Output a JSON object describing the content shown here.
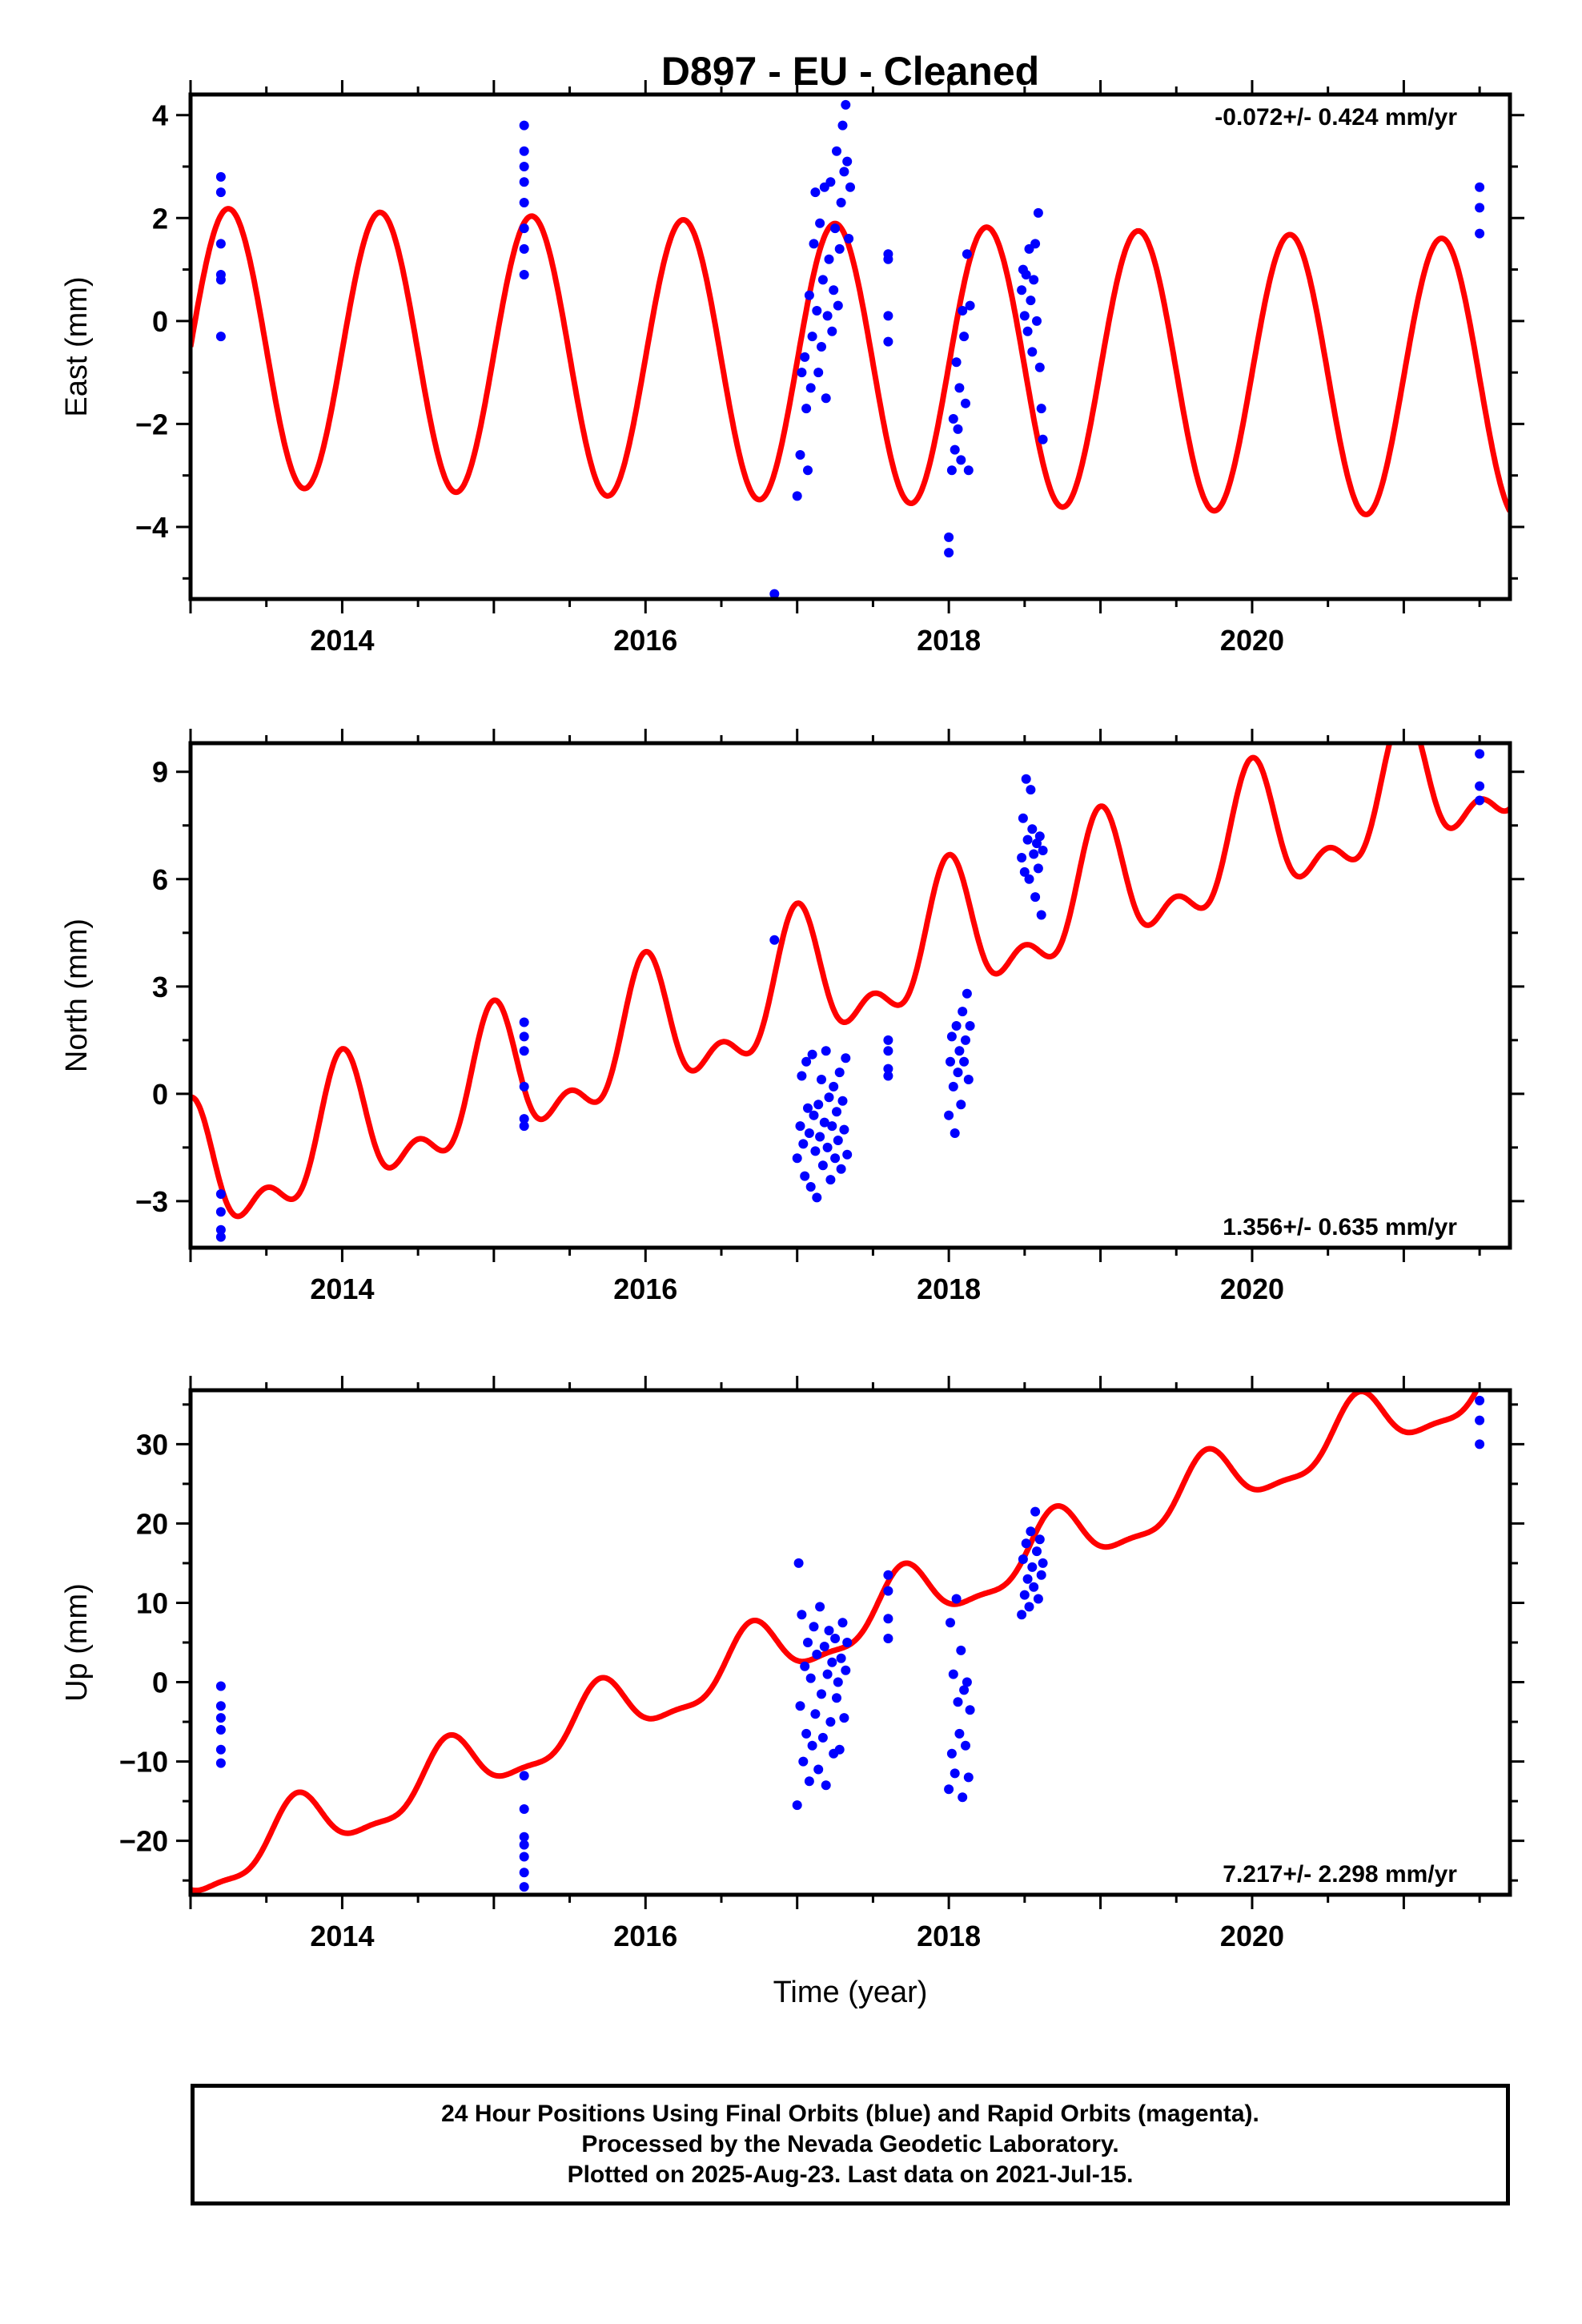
{
  "chart_data": [
    {
      "type": "scatter",
      "title": "D897  - EU - Cleaned",
      "ylabel": "East (mm)",
      "xlabel": "",
      "xlim": [
        2013.0,
        2021.7
      ],
      "ylim": [
        -5.4,
        4.4
      ],
      "xticks": [
        2014,
        2016,
        2018,
        2020
      ],
      "yticks": [
        4,
        2,
        0,
        -2,
        -4
      ],
      "ytick_labels": [
        "4",
        "2",
        "0",
        "−2",
        "−4"
      ],
      "rate_label": "-0.072+/- 0.424 mm/yr",
      "rate_position": "top-right",
      "grid": false,
      "model": {
        "rate": -0.072,
        "offset": -0.5,
        "ann_cos": 0.0,
        "ann_sin": 2.7,
        "ann_phase_year": 2013.0,
        "semi_amp": 0.0,
        "semi_phase": 0.0
      },
      "points": [
        {
          "x": 2013.2,
          "y": 2.8
        },
        {
          "x": 2013.2,
          "y": 2.5
        },
        {
          "x": 2013.2,
          "y": 1.5
        },
        {
          "x": 2013.2,
          "y": 0.9
        },
        {
          "x": 2013.2,
          "y": 0.8
        },
        {
          "x": 2013.2,
          "y": -0.3
        },
        {
          "x": 2015.2,
          "y": 3.8
        },
        {
          "x": 2015.2,
          "y": 3.3
        },
        {
          "x": 2015.2,
          "y": 3.0
        },
        {
          "x": 2015.2,
          "y": 2.7
        },
        {
          "x": 2015.2,
          "y": 2.3
        },
        {
          "x": 2015.2,
          "y": 1.8
        },
        {
          "x": 2015.2,
          "y": 1.4
        },
        {
          "x": 2015.2,
          "y": 0.9
        },
        {
          "x": 2016.85,
          "y": -5.3
        },
        {
          "x": 2017.0,
          "y": -3.4
        },
        {
          "x": 2017.02,
          "y": -2.6
        },
        {
          "x": 2017.03,
          "y": -1.0
        },
        {
          "x": 2017.05,
          "y": -0.7
        },
        {
          "x": 2017.06,
          "y": -1.7
        },
        {
          "x": 2017.07,
          "y": -2.9
        },
        {
          "x": 2017.08,
          "y": 0.5
        },
        {
          "x": 2017.09,
          "y": -1.3
        },
        {
          "x": 2017.1,
          "y": -0.3
        },
        {
          "x": 2017.11,
          "y": 1.5
        },
        {
          "x": 2017.12,
          "y": 2.5
        },
        {
          "x": 2017.13,
          "y": 0.2
        },
        {
          "x": 2017.14,
          "y": -1.0
        },
        {
          "x": 2017.15,
          "y": 1.9
        },
        {
          "x": 2017.16,
          "y": -0.5
        },
        {
          "x": 2017.17,
          "y": 0.8
        },
        {
          "x": 2017.18,
          "y": 2.6
        },
        {
          "x": 2017.19,
          "y": -1.5
        },
        {
          "x": 2017.2,
          "y": 0.1
        },
        {
          "x": 2017.21,
          "y": 1.2
        },
        {
          "x": 2017.22,
          "y": 2.7
        },
        {
          "x": 2017.23,
          "y": -0.2
        },
        {
          "x": 2017.24,
          "y": 0.6
        },
        {
          "x": 2017.25,
          "y": 1.8
        },
        {
          "x": 2017.26,
          "y": 3.3
        },
        {
          "x": 2017.27,
          "y": 0.3
        },
        {
          "x": 2017.28,
          "y": 1.4
        },
        {
          "x": 2017.29,
          "y": 2.3
        },
        {
          "x": 2017.3,
          "y": 3.8
        },
        {
          "x": 2017.31,
          "y": 2.9
        },
        {
          "x": 2017.32,
          "y": 4.2
        },
        {
          "x": 2017.33,
          "y": 3.1
        },
        {
          "x": 2017.34,
          "y": 1.6
        },
        {
          "x": 2017.35,
          "y": 2.6
        },
        {
          "x": 2017.6,
          "y": 1.3
        },
        {
          "x": 2017.6,
          "y": 1.2
        },
        {
          "x": 2017.6,
          "y": 0.1
        },
        {
          "x": 2017.6,
          "y": -0.4
        },
        {
          "x": 2018.0,
          "y": -4.5
        },
        {
          "x": 2018.0,
          "y": -4.2
        },
        {
          "x": 2018.02,
          "y": -2.9
        },
        {
          "x": 2018.03,
          "y": -1.9
        },
        {
          "x": 2018.04,
          "y": -2.5
        },
        {
          "x": 2018.05,
          "y": -0.8
        },
        {
          "x": 2018.06,
          "y": -2.1
        },
        {
          "x": 2018.07,
          "y": -1.3
        },
        {
          "x": 2018.08,
          "y": -2.7
        },
        {
          "x": 2018.09,
          "y": 0.2
        },
        {
          "x": 2018.1,
          "y": -0.3
        },
        {
          "x": 2018.11,
          "y": -1.6
        },
        {
          "x": 2018.12,
          "y": 1.3
        },
        {
          "x": 2018.13,
          "y": -2.9
        },
        {
          "x": 2018.14,
          "y": 0.3
        },
        {
          "x": 2018.48,
          "y": 0.6
        },
        {
          "x": 2018.49,
          "y": 1.0
        },
        {
          "x": 2018.5,
          "y": 0.1
        },
        {
          "x": 2018.51,
          "y": 0.9
        },
        {
          "x": 2018.52,
          "y": -0.2
        },
        {
          "x": 2018.53,
          "y": 1.4
        },
        {
          "x": 2018.54,
          "y": 0.4
        },
        {
          "x": 2018.55,
          "y": -0.6
        },
        {
          "x": 2018.56,
          "y": 0.8
        },
        {
          "x": 2018.57,
          "y": 1.5
        },
        {
          "x": 2018.58,
          "y": 0.0
        },
        {
          "x": 2018.59,
          "y": 2.1
        },
        {
          "x": 2018.6,
          "y": -0.9
        },
        {
          "x": 2018.61,
          "y": -1.7
        },
        {
          "x": 2018.62,
          "y": -2.3
        },
        {
          "x": 2021.5,
          "y": 2.6
        },
        {
          "x": 2021.5,
          "y": 2.2
        },
        {
          "x": 2021.5,
          "y": 1.7
        }
      ]
    },
    {
      "type": "scatter",
      "ylabel": "North (mm)",
      "xlabel": "",
      "xlim": [
        2013.0,
        2021.7
      ],
      "ylim": [
        -4.3,
        9.8
      ],
      "xticks": [
        2014,
        2016,
        2018,
        2020
      ],
      "yticks": [
        9,
        6,
        3,
        0,
        -3
      ],
      "ytick_labels": [
        "9",
        "6",
        "3",
        "0",
        "−3"
      ],
      "rate_label": "1.356+/- 0.635 mm/yr",
      "rate_position": "bottom-right",
      "grid": false,
      "model": {
        "rate": 1.356,
        "offset": -2.6,
        "ann_cos": -1.6,
        "ann_sin": 0.0,
        "ann_phase_year": 2013.5,
        "semi_amp": 0.9,
        "semi_phase": 2013.5
      },
      "points": [
        {
          "x": 2013.2,
          "y": -2.8
        },
        {
          "x": 2013.2,
          "y": -3.3
        },
        {
          "x": 2013.2,
          "y": -3.8
        },
        {
          "x": 2013.2,
          "y": -4.0
        },
        {
          "x": 2015.2,
          "y": 2.0
        },
        {
          "x": 2015.2,
          "y": 1.6
        },
        {
          "x": 2015.2,
          "y": 1.2
        },
        {
          "x": 2015.2,
          "y": 0.2
        },
        {
          "x": 2015.2,
          "y": -0.7
        },
        {
          "x": 2015.2,
          "y": -0.9
        },
        {
          "x": 2016.85,
          "y": 4.3
        },
        {
          "x": 2017.0,
          "y": -1.8
        },
        {
          "x": 2017.02,
          "y": -0.9
        },
        {
          "x": 2017.03,
          "y": 0.5
        },
        {
          "x": 2017.04,
          "y": -1.4
        },
        {
          "x": 2017.05,
          "y": -2.3
        },
        {
          "x": 2017.06,
          "y": 0.9
        },
        {
          "x": 2017.07,
          "y": -0.4
        },
        {
          "x": 2017.08,
          "y": -1.1
        },
        {
          "x": 2017.09,
          "y": -2.6
        },
        {
          "x": 2017.1,
          "y": 1.1
        },
        {
          "x": 2017.11,
          "y": -0.6
        },
        {
          "x": 2017.12,
          "y": -1.6
        },
        {
          "x": 2017.13,
          "y": -2.9
        },
        {
          "x": 2017.14,
          "y": -0.3
        },
        {
          "x": 2017.15,
          "y": -1.2
        },
        {
          "x": 2017.16,
          "y": 0.4
        },
        {
          "x": 2017.17,
          "y": -2.0
        },
        {
          "x": 2017.18,
          "y": -0.8
        },
        {
          "x": 2017.19,
          "y": 1.2
        },
        {
          "x": 2017.2,
          "y": -1.5
        },
        {
          "x": 2017.21,
          "y": -0.1
        },
        {
          "x": 2017.22,
          "y": -2.4
        },
        {
          "x": 2017.23,
          "y": -0.9
        },
        {
          "x": 2017.24,
          "y": 0.2
        },
        {
          "x": 2017.25,
          "y": -1.8
        },
        {
          "x": 2017.26,
          "y": -0.5
        },
        {
          "x": 2017.27,
          "y": -1.3
        },
        {
          "x": 2017.28,
          "y": 0.6
        },
        {
          "x": 2017.29,
          "y": -2.1
        },
        {
          "x": 2017.3,
          "y": -0.2
        },
        {
          "x": 2017.31,
          "y": -1.0
        },
        {
          "x": 2017.32,
          "y": 1.0
        },
        {
          "x": 2017.33,
          "y": -1.7
        },
        {
          "x": 2017.6,
          "y": 1.5
        },
        {
          "x": 2017.6,
          "y": 1.2
        },
        {
          "x": 2017.6,
          "y": 0.7
        },
        {
          "x": 2017.6,
          "y": 0.5
        },
        {
          "x": 2018.0,
          "y": -0.6
        },
        {
          "x": 2018.01,
          "y": 0.9
        },
        {
          "x": 2018.02,
          "y": 1.6
        },
        {
          "x": 2018.03,
          "y": 0.2
        },
        {
          "x": 2018.04,
          "y": -1.1
        },
        {
          "x": 2018.05,
          "y": 1.9
        },
        {
          "x": 2018.06,
          "y": 0.6
        },
        {
          "x": 2018.07,
          "y": 1.2
        },
        {
          "x": 2018.08,
          "y": -0.3
        },
        {
          "x": 2018.09,
          "y": 2.3
        },
        {
          "x": 2018.1,
          "y": 0.9
        },
        {
          "x": 2018.11,
          "y": 1.5
        },
        {
          "x": 2018.12,
          "y": 2.8
        },
        {
          "x": 2018.13,
          "y": 0.4
        },
        {
          "x": 2018.14,
          "y": 1.9
        },
        {
          "x": 2018.48,
          "y": 6.6
        },
        {
          "x": 2018.49,
          "y": 7.7
        },
        {
          "x": 2018.5,
          "y": 6.2
        },
        {
          "x": 2018.51,
          "y": 8.8
        },
        {
          "x": 2018.52,
          "y": 7.1
        },
        {
          "x": 2018.53,
          "y": 6.0
        },
        {
          "x": 2018.54,
          "y": 8.5
        },
        {
          "x": 2018.55,
          "y": 7.4
        },
        {
          "x": 2018.56,
          "y": 6.7
        },
        {
          "x": 2018.57,
          "y": 5.5
        },
        {
          "x": 2018.58,
          "y": 7.0
        },
        {
          "x": 2018.59,
          "y": 6.3
        },
        {
          "x": 2018.6,
          "y": 7.2
        },
        {
          "x": 2018.61,
          "y": 5.0
        },
        {
          "x": 2018.62,
          "y": 6.8
        },
        {
          "x": 2021.5,
          "y": 9.5
        },
        {
          "x": 2021.5,
          "y": 8.6
        },
        {
          "x": 2021.5,
          "y": 8.2
        }
      ]
    },
    {
      "type": "scatter",
      "ylabel": "Up (mm)",
      "xlabel": "Time (year)",
      "xlim": [
        2013.0,
        2021.7
      ],
      "ylim": [
        -26.8,
        36.8
      ],
      "xticks": [
        2014,
        2016,
        2018,
        2020
      ],
      "yticks": [
        30,
        20,
        10,
        0,
        -10,
        -20
      ],
      "ytick_labels": [
        "30",
        "20",
        "10",
        "0",
        "−10",
        "−20"
      ],
      "rate_label": "7.217+/- 2.298 mm/yr",
      "rate_position": "bottom-right",
      "grid": false,
      "model": {
        "rate": 7.217,
        "offset": -24.0,
        "ann_cos": 3.8,
        "ann_sin": 0.0,
        "ann_phase_year": 2013.7,
        "semi_amp": 1.2,
        "semi_phase": 2013.7
      },
      "points": [
        {
          "x": 2013.2,
          "y": -0.5
        },
        {
          "x": 2013.2,
          "y": -3.0
        },
        {
          "x": 2013.2,
          "y": -4.5
        },
        {
          "x": 2013.2,
          "y": -6.0
        },
        {
          "x": 2013.2,
          "y": -8.5
        },
        {
          "x": 2013.2,
          "y": -10.2
        },
        {
          "x": 2015.2,
          "y": -11.8
        },
        {
          "x": 2015.2,
          "y": -16.0
        },
        {
          "x": 2015.2,
          "y": -19.5
        },
        {
          "x": 2015.2,
          "y": -20.5
        },
        {
          "x": 2015.2,
          "y": -22.0
        },
        {
          "x": 2015.2,
          "y": -24.0
        },
        {
          "x": 2015.2,
          "y": -25.8
        },
        {
          "x": 2017.0,
          "y": -15.5
        },
        {
          "x": 2017.01,
          "y": 15.0
        },
        {
          "x": 2017.02,
          "y": -3.0
        },
        {
          "x": 2017.03,
          "y": 8.5
        },
        {
          "x": 2017.04,
          "y": -10.0
        },
        {
          "x": 2017.05,
          "y": 2.0
        },
        {
          "x": 2017.06,
          "y": -6.5
        },
        {
          "x": 2017.07,
          "y": 5.0
        },
        {
          "x": 2017.08,
          "y": -12.5
        },
        {
          "x": 2017.09,
          "y": 0.5
        },
        {
          "x": 2017.1,
          "y": -8.0
        },
        {
          "x": 2017.11,
          "y": 7.0
        },
        {
          "x": 2017.12,
          "y": -4.0
        },
        {
          "x": 2017.13,
          "y": 3.5
        },
        {
          "x": 2017.14,
          "y": -11.0
        },
        {
          "x": 2017.15,
          "y": 9.5
        },
        {
          "x": 2017.16,
          "y": -1.5
        },
        {
          "x": 2017.17,
          "y": -7.0
        },
        {
          "x": 2017.18,
          "y": 4.5
        },
        {
          "x": 2017.19,
          "y": -13.0
        },
        {
          "x": 2017.2,
          "y": 1.0
        },
        {
          "x": 2017.21,
          "y": 6.5
        },
        {
          "x": 2017.22,
          "y": -5.0
        },
        {
          "x": 2017.23,
          "y": 2.5
        },
        {
          "x": 2017.24,
          "y": -9.0
        },
        {
          "x": 2017.25,
          "y": 5.5
        },
        {
          "x": 2017.26,
          "y": -2.0
        },
        {
          "x": 2017.27,
          "y": 0.0
        },
        {
          "x": 2017.28,
          "y": -8.5
        },
        {
          "x": 2017.29,
          "y": 3.0
        },
        {
          "x": 2017.3,
          "y": 7.5
        },
        {
          "x": 2017.31,
          "y": -4.5
        },
        {
          "x": 2017.32,
          "y": 1.5
        },
        {
          "x": 2017.33,
          "y": 5.0
        },
        {
          "x": 2017.6,
          "y": 13.5
        },
        {
          "x": 2017.6,
          "y": 11.5
        },
        {
          "x": 2017.6,
          "y": 8.0
        },
        {
          "x": 2017.6,
          "y": 5.5
        },
        {
          "x": 2018.0,
          "y": -13.5
        },
        {
          "x": 2018.01,
          "y": 7.5
        },
        {
          "x": 2018.02,
          "y": -9.0
        },
        {
          "x": 2018.03,
          "y": 1.0
        },
        {
          "x": 2018.04,
          "y": -11.5
        },
        {
          "x": 2018.05,
          "y": 10.5
        },
        {
          "x": 2018.06,
          "y": -2.5
        },
        {
          "x": 2018.07,
          "y": -6.5
        },
        {
          "x": 2018.08,
          "y": 4.0
        },
        {
          "x": 2018.09,
          "y": -14.5
        },
        {
          "x": 2018.1,
          "y": -1.0
        },
        {
          "x": 2018.11,
          "y": -8.0
        },
        {
          "x": 2018.12,
          "y": 0.0
        },
        {
          "x": 2018.13,
          "y": -12.0
        },
        {
          "x": 2018.14,
          "y": -3.5
        },
        {
          "x": 2018.48,
          "y": 8.5
        },
        {
          "x": 2018.49,
          "y": 15.5
        },
        {
          "x": 2018.5,
          "y": 11.0
        },
        {
          "x": 2018.51,
          "y": 17.5
        },
        {
          "x": 2018.52,
          "y": 13.0
        },
        {
          "x": 2018.53,
          "y": 9.5
        },
        {
          "x": 2018.54,
          "y": 19.0
        },
        {
          "x": 2018.55,
          "y": 14.5
        },
        {
          "x": 2018.56,
          "y": 12.0
        },
        {
          "x": 2018.57,
          "y": 21.5
        },
        {
          "x": 2018.58,
          "y": 16.5
        },
        {
          "x": 2018.59,
          "y": 10.5
        },
        {
          "x": 2018.6,
          "y": 18.0
        },
        {
          "x": 2018.61,
          "y": 13.5
        },
        {
          "x": 2018.62,
          "y": 15.0
        },
        {
          "x": 2021.5,
          "y": 35.5
        },
        {
          "x": 2021.5,
          "y": 33.0
        },
        {
          "x": 2021.5,
          "y": 30.0
        }
      ]
    }
  ],
  "colors": {
    "points": "#0000ff",
    "model": "#ff0000",
    "axes": "#000000"
  },
  "footer": {
    "line1": "24 Hour Positions Using Final Orbits (blue) and Rapid Orbits (magenta).",
    "line2": "Processed by the Nevada Geodetic Laboratory.",
    "line3": "Plotted on 2025-Aug-23. Last data on 2021-Jul-15."
  }
}
